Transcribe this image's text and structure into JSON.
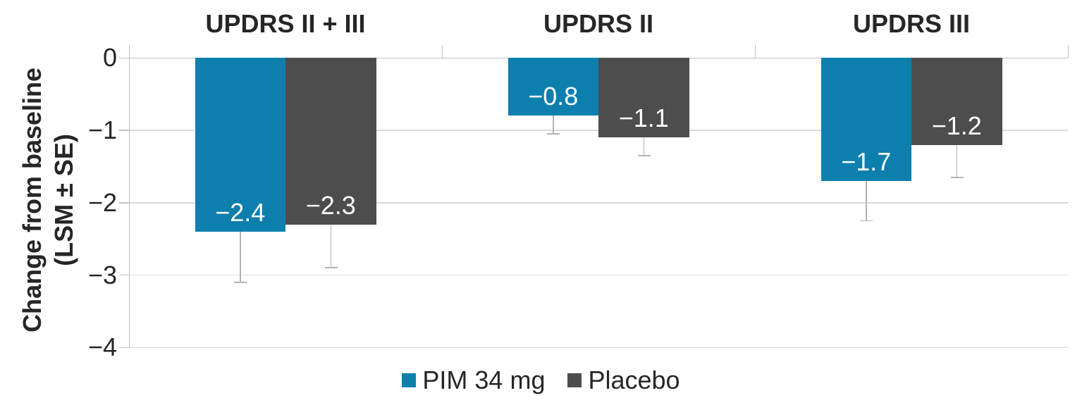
{
  "chart_data": {
    "type": "bar",
    "title": "",
    "ylabel_lines": [
      "Change from baseline",
      "(LSM ± SE)"
    ],
    "ylim": [
      -4,
      0
    ],
    "yticks": [
      0,
      -1,
      -2,
      -3,
      -4
    ],
    "ytick_labels": [
      "0",
      "−1",
      "−2",
      "−3",
      "−4"
    ],
    "categories": [
      "UPDRS II + III",
      "UPDRS II",
      "UPDRS III"
    ],
    "series": [
      {
        "name": "PIM 34 mg",
        "color": "#0d7fad",
        "values": [
          -2.4,
          -0.8,
          -1.7
        ],
        "value_labels": [
          "−2.4",
          "−0.8",
          "−1.7"
        ],
        "error_low": [
          -3.1,
          -1.05,
          -2.25
        ]
      },
      {
        "name": "Placebo",
        "color": "#4d4d4d",
        "values": [
          -2.3,
          -1.1,
          -1.2
        ],
        "value_labels": [
          "−2.3",
          "−1.1",
          "−1.2"
        ],
        "error_low": [
          -2.9,
          -1.35,
          -1.65
        ]
      }
    ],
    "grid": true,
    "legend_position": "bottom",
    "colors": {
      "background": "#ffffff",
      "text": "#262626",
      "gridline": "#dadada",
      "axis": "#c2c2c2",
      "error_bar": "#b3b3b3",
      "bar_label": "#ffffff"
    }
  }
}
